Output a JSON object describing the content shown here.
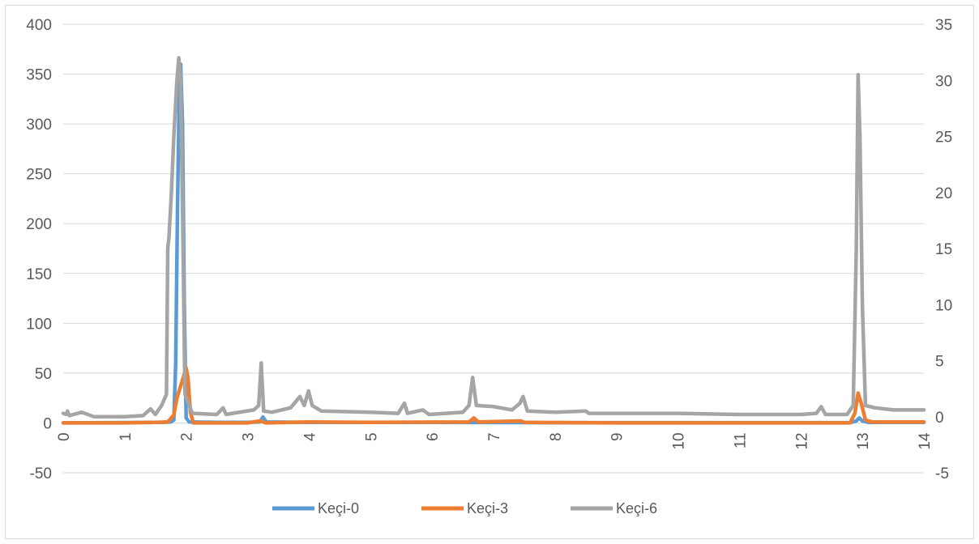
{
  "chart_data": {
    "type": "line",
    "title": "",
    "xlabel": "",
    "ylabel": "",
    "x_ticks": [
      "0",
      "1",
      "2",
      "3",
      "4",
      "5",
      "6",
      "7",
      "8",
      "9",
      "10",
      "11",
      "12",
      "13",
      "14"
    ],
    "xlim": [
      0,
      14
    ],
    "y_left_ticks": [
      "400",
      "350",
      "300",
      "250",
      "200",
      "150",
      "100",
      "50",
      "0",
      "-50"
    ],
    "ylim_left": [
      -50,
      400
    ],
    "y_right_ticks": [
      "35",
      "30",
      "25",
      "20",
      "15",
      "10",
      "5",
      "0",
      "-5"
    ],
    "ylim_right": [
      -5,
      35
    ],
    "grid": true,
    "legend_position": "bottom",
    "series": [
      {
        "name": "Keçi-0",
        "axis": "left",
        "color": "#5B9BD5",
        "points": [
          [
            0,
            0
          ],
          [
            1.6,
            0.5
          ],
          [
            1.75,
            1
          ],
          [
            1.8,
            3
          ],
          [
            1.83,
            60
          ],
          [
            1.86,
            220
          ],
          [
            1.89,
            345
          ],
          [
            1.91,
            360
          ],
          [
            1.94,
            300
          ],
          [
            1.97,
            120
          ],
          [
            2.0,
            5
          ],
          [
            2.05,
            1
          ],
          [
            2.5,
            0.5
          ],
          [
            3.0,
            0.5
          ],
          [
            3.2,
            1
          ],
          [
            3.25,
            6
          ],
          [
            3.3,
            1
          ],
          [
            4,
            0.5
          ],
          [
            6,
            0.5
          ],
          [
            8,
            0.3
          ],
          [
            10,
            0.3
          ],
          [
            12.8,
            0.3
          ],
          [
            12.9,
            2
          ],
          [
            12.95,
            5
          ],
          [
            13.0,
            2
          ],
          [
            13.1,
            0.5
          ],
          [
            14,
            0.5
          ]
        ]
      },
      {
        "name": "Keçi-3",
        "axis": "left",
        "color": "#ED7D31",
        "points": [
          [
            0,
            0
          ],
          [
            1,
            0
          ],
          [
            1.5,
            0.5
          ],
          [
            1.7,
            1
          ],
          [
            1.8,
            8
          ],
          [
            1.85,
            25
          ],
          [
            1.9,
            35
          ],
          [
            1.95,
            45
          ],
          [
            2.0,
            55
          ],
          [
            2.03,
            45
          ],
          [
            2.07,
            10
          ],
          [
            2.12,
            0
          ],
          [
            3,
            0
          ],
          [
            3.2,
            2
          ],
          [
            3.3,
            0
          ],
          [
            4,
            1
          ],
          [
            5,
            0.5
          ],
          [
            6.6,
            1
          ],
          [
            6.68,
            5
          ],
          [
            6.75,
            1
          ],
          [
            7.45,
            2
          ],
          [
            7.5,
            0.5
          ],
          [
            9,
            0
          ],
          [
            11,
            0
          ],
          [
            12.8,
            0
          ],
          [
            12.88,
            10
          ],
          [
            12.93,
            30
          ],
          [
            12.98,
            20
          ],
          [
            13.05,
            3
          ],
          [
            13.15,
            1
          ],
          [
            14,
            1
          ]
        ]
      },
      {
        "name": "Keçi-6",
        "axis": "right",
        "color": "#A5A5A5",
        "points": [
          [
            0,
            0.3
          ],
          [
            0.05,
            0.2
          ],
          [
            0.07,
            0.5
          ],
          [
            0.1,
            0.1
          ],
          [
            0.3,
            0.4
          ],
          [
            0.5,
            0
          ],
          [
            1,
            0
          ],
          [
            1.3,
            0.1
          ],
          [
            1.42,
            0.7
          ],
          [
            1.5,
            0.2
          ],
          [
            1.6,
            1
          ],
          [
            1.68,
            2
          ],
          [
            1.7,
            15
          ],
          [
            1.72,
            16
          ],
          [
            1.76,
            20
          ],
          [
            1.8,
            25
          ],
          [
            1.85,
            30
          ],
          [
            1.88,
            32
          ],
          [
            1.91,
            30
          ],
          [
            1.95,
            15
          ],
          [
            1.98,
            2
          ],
          [
            2.1,
            0.3
          ],
          [
            2.5,
            0.2
          ],
          [
            2.6,
            0.8
          ],
          [
            2.65,
            0.2
          ],
          [
            2.75,
            0.3
          ],
          [
            3.1,
            0.6
          ],
          [
            3.18,
            1
          ],
          [
            3.22,
            4.8
          ],
          [
            3.26,
            0.5
          ],
          [
            3.4,
            0.4
          ],
          [
            3.7,
            0.8
          ],
          [
            3.85,
            1.8
          ],
          [
            3.92,
            1
          ],
          [
            3.99,
            2.3
          ],
          [
            4.05,
            1
          ],
          [
            4.2,
            0.5
          ],
          [
            5,
            0.4
          ],
          [
            5.45,
            0.3
          ],
          [
            5.55,
            1.2
          ],
          [
            5.6,
            0.3
          ],
          [
            5.85,
            0.6
          ],
          [
            5.95,
            0.2
          ],
          [
            6.5,
            0.4
          ],
          [
            6.6,
            1
          ],
          [
            6.66,
            3.5
          ],
          [
            6.72,
            1
          ],
          [
            7.0,
            0.9
          ],
          [
            7.3,
            0.6
          ],
          [
            7.43,
            1.2
          ],
          [
            7.48,
            1.8
          ],
          [
            7.55,
            0.5
          ],
          [
            8,
            0.4
          ],
          [
            8.5,
            0.5
          ],
          [
            8.55,
            0.3
          ],
          [
            9,
            0.3
          ],
          [
            10,
            0.3
          ],
          [
            11,
            0.2
          ],
          [
            12,
            0.2
          ],
          [
            12.25,
            0.3
          ],
          [
            12.33,
            0.9
          ],
          [
            12.4,
            0.2
          ],
          [
            12.75,
            0.2
          ],
          [
            12.85,
            1
          ],
          [
            12.9,
            15
          ],
          [
            12.93,
            30.5
          ],
          [
            12.96,
            25
          ],
          [
            13.0,
            10
          ],
          [
            13.05,
            1
          ],
          [
            13.2,
            0.8
          ],
          [
            13.5,
            0.6
          ],
          [
            14,
            0.6
          ]
        ]
      }
    ]
  }
}
